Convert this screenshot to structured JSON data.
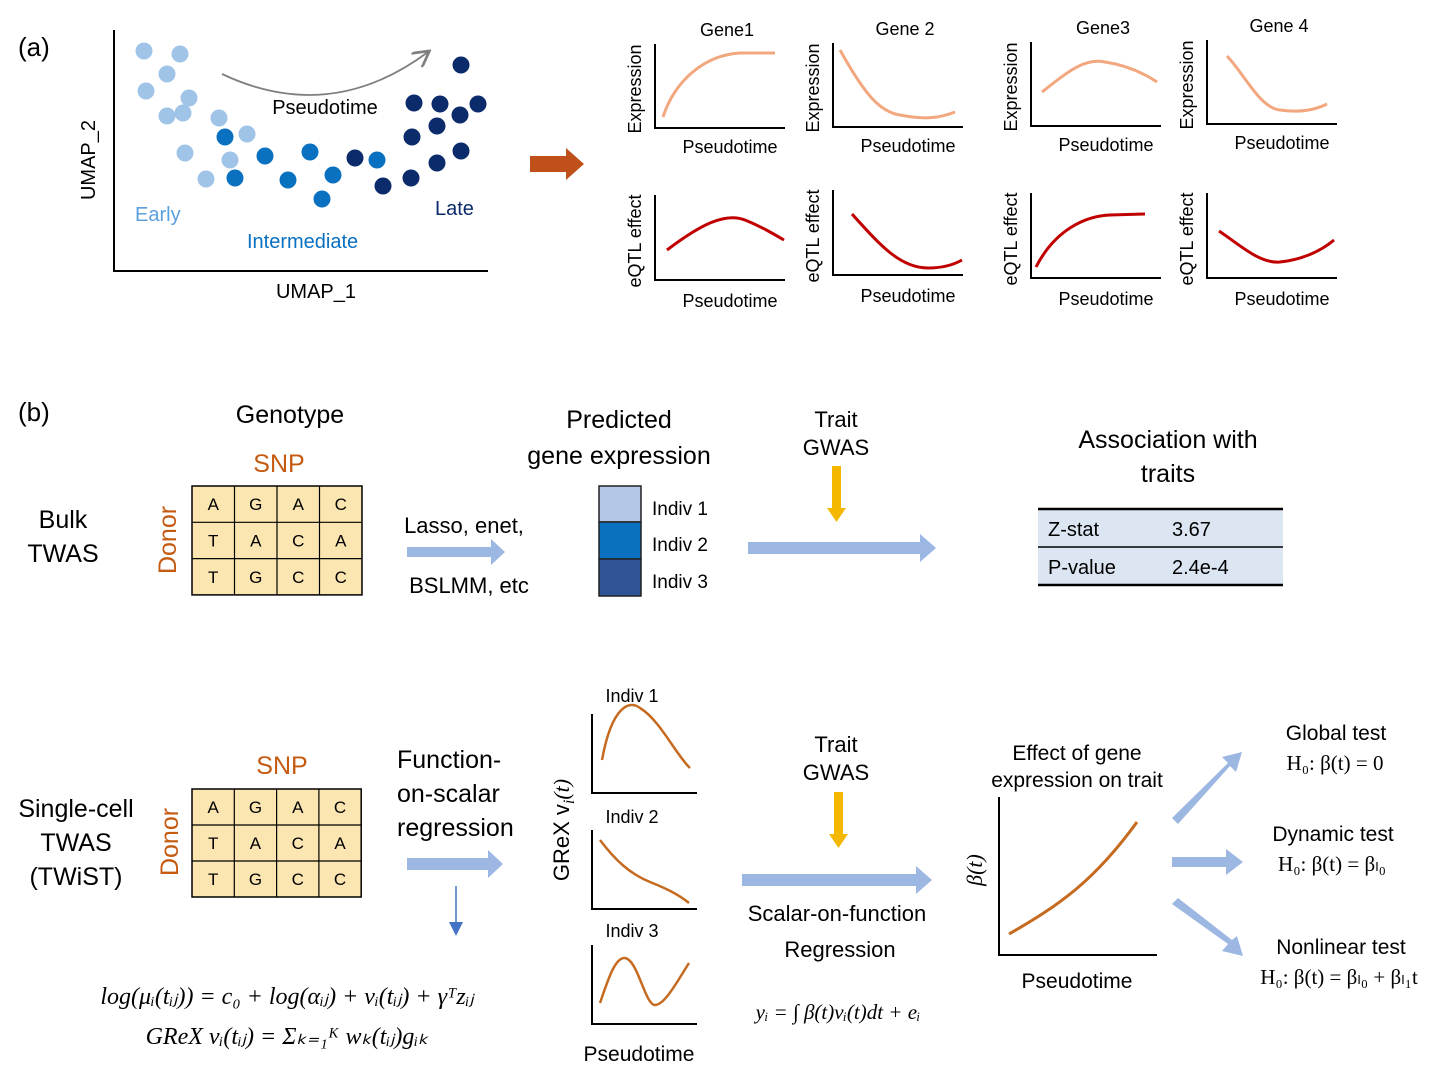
{
  "colors": {
    "early": "#a0c4e8",
    "intermediate": "#0a70c0",
    "late": "#0b2b6a",
    "expression_curve": "#f2a77e",
    "eqtl_curve": "#c00000",
    "snp_orange": "#c55a11",
    "grid_fill": "#fbe5b0",
    "arrow_blue": "#9db7e3",
    "arrow_brown": "#c0501a",
    "arrow_yellow": "#f5b800",
    "table_fill": "#dce6f2",
    "curve_brown": "#c56a1f"
  },
  "panel_a": {
    "label": "(a)",
    "umap_xlabel": "UMAP_1",
    "umap_ylabel": "UMAP_2",
    "arrow_label": "Pseudotime",
    "group_early": "Early",
    "group_intermediate": "Intermediate",
    "group_late": "Late",
    "gene_titles": [
      "Gene1",
      "Gene 2",
      "Gene3",
      "Gene 4"
    ],
    "expression_ylabel": "Expression",
    "eqtl_ylabel": "eQTL effect",
    "xlabel": "Pseudotime"
  },
  "panel_b": {
    "label": "(b)",
    "genotype_title": "Genotype",
    "snp_label": "SNP",
    "donor_label": "Donor",
    "snp_grid": [
      [
        "A",
        "G",
        "A",
        "C"
      ],
      [
        "T",
        "A",
        "C",
        "A"
      ],
      [
        "T",
        "G",
        "C",
        "C"
      ]
    ],
    "bulk": {
      "name_line1": "Bulk",
      "name_line2": "TWAS",
      "method_line1": "Lasso, enet,",
      "method_line2": "BSLMM, etc",
      "predicted_line1": "Predicted",
      "predicted_line2": "gene expression",
      "indivs": [
        "Indiv 1",
        "Indiv 2",
        "Indiv 3"
      ],
      "trait_line1": "Trait",
      "trait_line2": "GWAS",
      "assoc_line1": "Association with",
      "assoc_line2": "traits",
      "table": [
        [
          "Z-stat",
          "3.67"
        ],
        [
          "P-value",
          "2.4e-4"
        ]
      ]
    },
    "single_cell": {
      "name_line1": "Single-cell",
      "name_line2": "TWAS",
      "name_line3": "(TWiST)",
      "method_line1": "Function-",
      "method_line2": "on-scalar",
      "method_line3": "regression",
      "indiv_titles": [
        "Indiv 1",
        "Indiv 2",
        "Indiv 3"
      ],
      "grex_ylabel": "GReX v",
      "grex_sub": "i",
      "grex_arg": "(t)",
      "xlabel": "Pseudotime",
      "trait_line1": "Trait",
      "trait_line2": "GWAS",
      "sof_line1": "Scalar-on-function",
      "sof_line2": "Regression",
      "effect_line1": "Effect of gene",
      "effect_line2": "expression on trait",
      "beta_ylabel": "β(t)",
      "effect_xlabel": "Pseudotime",
      "tests": [
        {
          "name": "Global test",
          "hyp": "H₀: β(t) = 0"
        },
        {
          "name": "Dynamic test",
          "hyp": "H₀: β(t) = βₗ₀"
        },
        {
          "name": "Nonlinear test",
          "hyp": "H₀: β(t) = βₗ₀ + βₗ₁t"
        }
      ],
      "formula_log": "log(μᵢ(tᵢⱼ)) = c₀ + log(αᵢⱼ) + vᵢ(tᵢⱼ) + γᵀzᵢⱼ",
      "formula_grex": "GReX vᵢ(tᵢⱼ) = Σₖ₌₁ᴷ wₖ(tᵢⱼ)gᵢₖ",
      "formula_scalar": "yᵢ = ∫ β(t)vᵢ(t)dt + eᵢ"
    }
  }
}
